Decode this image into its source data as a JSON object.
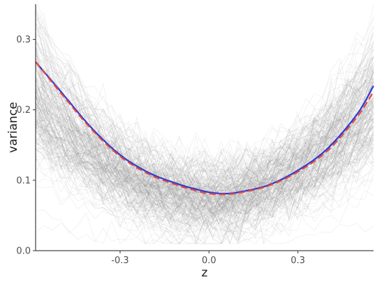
{
  "chart_data": {
    "type": "line",
    "title": "",
    "xlabel": "z",
    "ylabel": "variance",
    "xlim": [
      -0.585,
      0.555
    ],
    "ylim": [
      0,
      0.35
    ],
    "x_ticks": [
      -0.3,
      0.0,
      0.3
    ],
    "x_tick_labels": [
      "-0.3",
      "0.0",
      "0.3"
    ],
    "y_ticks": [
      0.0,
      0.1,
      0.2,
      0.3
    ],
    "y_tick_labels": [
      "0.0",
      "0.1",
      "0.2",
      "0.3"
    ],
    "grid": false,
    "legend": "none",
    "background_lines": {
      "count": 220,
      "color": "#8c8c8c",
      "description_of_form": "many noisy grey sample curves, U-shaped"
    },
    "series": [
      {
        "style": "solid",
        "color": "#2b3bd6",
        "x": [
          -0.585,
          -0.5,
          -0.4,
          -0.3,
          -0.2,
          -0.1,
          -0.05,
          0.0,
          0.05,
          0.1,
          0.2,
          0.3,
          0.4,
          0.5,
          0.555
        ],
        "y": [
          0.268,
          0.226,
          0.176,
          0.136,
          0.11,
          0.094,
          0.088,
          0.083,
          0.081,
          0.083,
          0.093,
          0.114,
          0.145,
          0.194,
          0.234
        ]
      },
      {
        "style": "dashed",
        "color": "#e8473b",
        "x": [
          -0.585,
          -0.5,
          -0.4,
          -0.3,
          -0.2,
          -0.1,
          -0.05,
          0.0,
          0.05,
          0.1,
          0.2,
          0.3,
          0.4,
          0.5,
          0.555
        ],
        "y": [
          0.268,
          0.224,
          0.174,
          0.134,
          0.108,
          0.092,
          0.086,
          0.081,
          0.08,
          0.082,
          0.092,
          0.112,
          0.142,
          0.19,
          0.226
        ]
      }
    ]
  }
}
